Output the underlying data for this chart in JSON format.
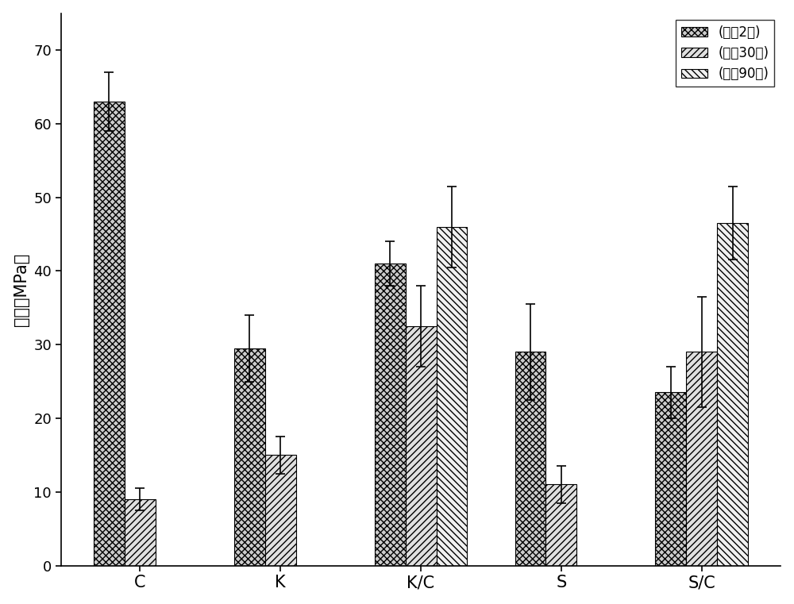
{
  "categories": [
    "C",
    "K",
    "K/C",
    "S",
    "S/C"
  ],
  "series": [
    {
      "label": "(养护2天)",
      "values": [
        63.0,
        29.5,
        41.0,
        29.0,
        23.5
      ],
      "errors": [
        4.0,
        4.5,
        3.0,
        6.5,
        3.5
      ],
      "hatch": "xxxx",
      "facecolor": "#cccccc",
      "edgecolor": "#000000"
    },
    {
      "label": "(养护30天)",
      "values": [
        9.0,
        15.0,
        32.5,
        11.0,
        29.0
      ],
      "errors": [
        1.5,
        2.5,
        5.5,
        2.5,
        7.5
      ],
      "hatch": "////",
      "facecolor": "#e0e0e0",
      "edgecolor": "#000000"
    },
    {
      "label": "(养护90天)",
      "values": [
        0,
        0,
        46.0,
        0,
        46.5
      ],
      "errors": [
        0,
        0,
        5.5,
        0,
        5.0
      ],
      "hatch": "\\\\\\\\",
      "facecolor": "#f0f0f0",
      "edgecolor": "#000000"
    }
  ],
  "ylabel": "强度（MPa）",
  "ylim": [
    0,
    75
  ],
  "yticks": [
    0,
    10,
    20,
    30,
    40,
    50,
    60,
    70
  ],
  "bar_width": 0.22,
  "title": "",
  "legend_loc": "upper right",
  "figsize": [
    10.0,
    7.61
  ],
  "dpi": 100
}
